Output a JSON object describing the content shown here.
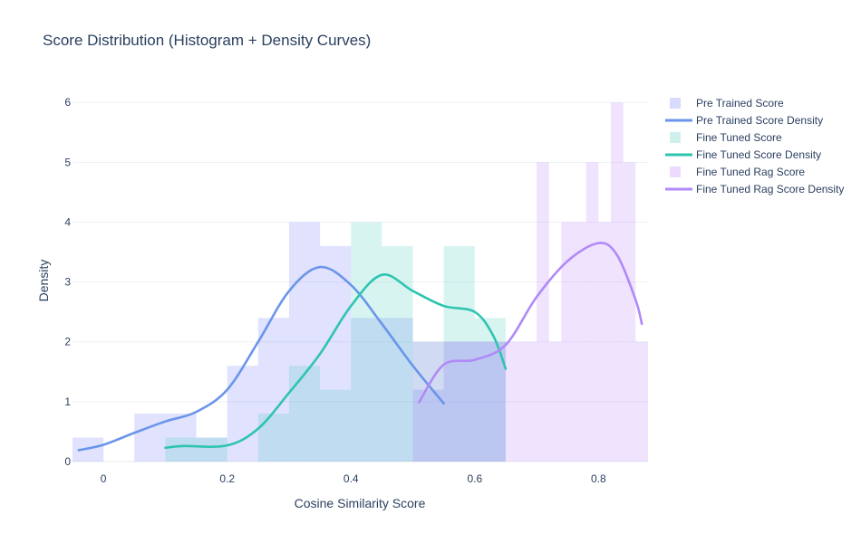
{
  "chart_data": {
    "type": "histogram+density",
    "title": "Score Distribution (Histogram + Density Curves)",
    "xlabel": "Cosine Similarity Score",
    "ylabel": "Density",
    "xlim": [
      -0.05,
      0.88
    ],
    "ylim": [
      0,
      6.2
    ],
    "x_ticks": [
      {
        "value": 0,
        "label": "0"
      },
      {
        "value": 0.2,
        "label": "0.2"
      },
      {
        "value": 0.4,
        "label": "0.4"
      },
      {
        "value": 0.6,
        "label": "0.6"
      },
      {
        "value": 0.8,
        "label": "0.8"
      }
    ],
    "y_ticks": [
      {
        "value": 0,
        "label": "0"
      },
      {
        "value": 1,
        "label": "1"
      },
      {
        "value": 2,
        "label": "2"
      },
      {
        "value": 3,
        "label": "3"
      },
      {
        "value": 4,
        "label": "4"
      },
      {
        "value": 5,
        "label": "5"
      },
      {
        "value": 6,
        "label": "6"
      }
    ],
    "grid": true,
    "legend_position": "top-right",
    "series": [
      {
        "name": "Pre Trained Score",
        "kind": "histogram",
        "color": "#636efa",
        "opacity": 0.2,
        "bins": [
          {
            "x0": -0.05,
            "x1": 0.0,
            "y": 0.4
          },
          {
            "x0": 0.05,
            "x1": 0.15,
            "y": 0.8
          },
          {
            "x0": 0.15,
            "x1": 0.2,
            "y": 0.4
          },
          {
            "x0": 0.2,
            "x1": 0.25,
            "y": 1.6
          },
          {
            "x0": 0.25,
            "x1": 0.3,
            "y": 2.4
          },
          {
            "x0": 0.3,
            "x1": 0.35,
            "y": 4.0
          },
          {
            "x0": 0.35,
            "x1": 0.4,
            "y": 3.6
          },
          {
            "x0": 0.4,
            "x1": 0.45,
            "y": 2.4
          },
          {
            "x0": 0.45,
            "x1": 0.5,
            "y": 2.4
          },
          {
            "x0": 0.5,
            "x1": 0.55,
            "y": 1.2
          },
          {
            "x0": 0.55,
            "x1": 0.6,
            "y": 2.0
          },
          {
            "x0": 0.6,
            "x1": 0.65,
            "y": 2.0
          }
        ]
      },
      {
        "name": "Pre Trained Score Density",
        "kind": "line",
        "color": "#6a95ea",
        "points": [
          [
            -0.04,
            0.19
          ],
          [
            0.0,
            0.28
          ],
          [
            0.05,
            0.48
          ],
          [
            0.1,
            0.67
          ],
          [
            0.15,
            0.83
          ],
          [
            0.2,
            1.2
          ],
          [
            0.25,
            2.0
          ],
          [
            0.3,
            2.85
          ],
          [
            0.35,
            3.25
          ],
          [
            0.4,
            2.95
          ],
          [
            0.45,
            2.3
          ],
          [
            0.5,
            1.6
          ],
          [
            0.55,
            0.97
          ]
        ]
      },
      {
        "name": "Fine Tuned Score",
        "kind": "histogram",
        "color": "#3cc9b9",
        "opacity": 0.2,
        "bins": [
          {
            "x0": 0.1,
            "x1": 0.2,
            "y": 0.4
          },
          {
            "x0": 0.25,
            "x1": 0.3,
            "y": 0.8
          },
          {
            "x0": 0.3,
            "x1": 0.35,
            "y": 1.6
          },
          {
            "x0": 0.35,
            "x1": 0.4,
            "y": 1.2
          },
          {
            "x0": 0.4,
            "x1": 0.45,
            "y": 4.0
          },
          {
            "x0": 0.45,
            "x1": 0.5,
            "y": 3.6
          },
          {
            "x0": 0.5,
            "x1": 0.55,
            "y": 2.0
          },
          {
            "x0": 0.55,
            "x1": 0.6,
            "y": 3.6
          },
          {
            "x0": 0.6,
            "x1": 0.65,
            "y": 2.4
          }
        ]
      },
      {
        "name": "Fine Tuned Score Density",
        "kind": "line",
        "color": "#2ec4b0",
        "points": [
          [
            0.1,
            0.23
          ],
          [
            0.13,
            0.26
          ],
          [
            0.2,
            0.27
          ],
          [
            0.25,
            0.55
          ],
          [
            0.3,
            1.15
          ],
          [
            0.35,
            1.8
          ],
          [
            0.4,
            2.6
          ],
          [
            0.45,
            3.12
          ],
          [
            0.5,
            2.85
          ],
          [
            0.55,
            2.6
          ],
          [
            0.6,
            2.5
          ],
          [
            0.63,
            2.1
          ],
          [
            0.65,
            1.55
          ]
        ]
      },
      {
        "name": "Fine Tuned Rag Score",
        "kind": "histogram",
        "color": "#ab63fa",
        "opacity": 0.18,
        "bins": [
          {
            "x0": 0.5,
            "x1": 0.68,
            "y": 2.0
          },
          {
            "x0": 0.68,
            "x1": 0.7,
            "y": 2.0
          },
          {
            "x0": 0.7,
            "x1": 0.72,
            "y": 5.0
          },
          {
            "x0": 0.72,
            "x1": 0.74,
            "y": 2.0
          },
          {
            "x0": 0.74,
            "x1": 0.78,
            "y": 4.0
          },
          {
            "x0": 0.78,
            "x1": 0.8,
            "y": 5.0
          },
          {
            "x0": 0.8,
            "x1": 0.82,
            "y": 4.0
          },
          {
            "x0": 0.82,
            "x1": 0.84,
            "y": 6.0
          },
          {
            "x0": 0.84,
            "x1": 0.86,
            "y": 5.0
          },
          {
            "x0": 0.86,
            "x1": 0.88,
            "y": 2.0
          }
        ]
      },
      {
        "name": "Fine Tuned Rag Score Density",
        "kind": "line",
        "color": "#b08af7",
        "points": [
          [
            0.51,
            0.99
          ],
          [
            0.55,
            1.62
          ],
          [
            0.6,
            1.7
          ],
          [
            0.65,
            1.95
          ],
          [
            0.7,
            2.75
          ],
          [
            0.75,
            3.35
          ],
          [
            0.8,
            3.65
          ],
          [
            0.83,
            3.45
          ],
          [
            0.86,
            2.7
          ],
          [
            0.87,
            2.3
          ]
        ]
      }
    ]
  }
}
